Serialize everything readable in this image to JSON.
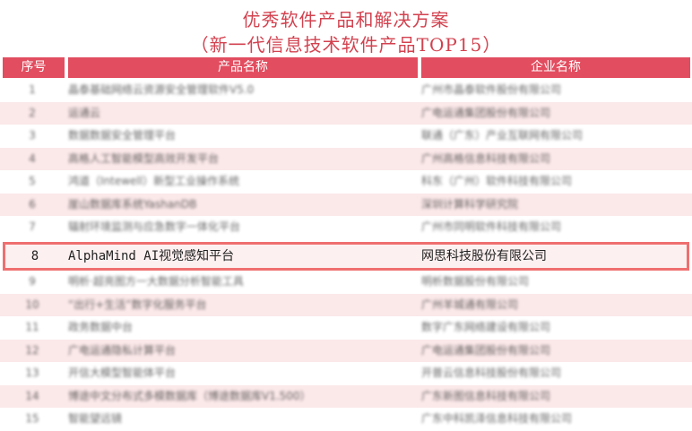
{
  "title": {
    "line1": "优秀软件产品和解决方案",
    "line2": "（新一代信息技术软件产品TOP15）"
  },
  "table": {
    "headers": [
      "序号",
      "产品名称",
      "企业名称"
    ],
    "highlight_color": "#ef6f70",
    "header_color": "#e24d5f",
    "rows": [
      {
        "no": "1",
        "product": "晶泰基础网络云资源安全管理软件V5.0",
        "company": "广州市晶泰软件股份有限公司"
      },
      {
        "no": "2",
        "product": "运通云",
        "company": "广电运通集团股份有限公司"
      },
      {
        "no": "3",
        "product": "数据数据安全管理平台",
        "company": "联通（广东）产业互联网有限公司"
      },
      {
        "no": "4",
        "product": "高格人工智能模型高效开发平台",
        "company": "广州高格信息科技有限公司"
      },
      {
        "no": "5",
        "product": "鸿道（Intewell）新型工业操作系统",
        "company": "科东（广州）软件科技有限公司"
      },
      {
        "no": "6",
        "product": "崖山数据库系统YashanDB",
        "company": "深圳计算科学研究院"
      },
      {
        "no": "7",
        "product": "辐射环境监测与应急数字一体化平台",
        "company": "广州市同明软件科技有限公司"
      },
      {
        "no": "8",
        "product": "AlphaMind AI视觉感知平台",
        "company": "网思科技股份有限公司"
      },
      {
        "no": "9",
        "product": "明析·超亮图方一大数据分析智能工具",
        "company": "明析数据股份有限公司"
      },
      {
        "no": "10",
        "product": "“出行+生活”数字化服务平台",
        "company": "广州羊城通有限公司"
      },
      {
        "no": "11",
        "product": "政务数据中台",
        "company": "数字广东网络建设有限公司"
      },
      {
        "no": "12",
        "product": "广电运通隐私计算平台",
        "company": "广电运通集团股份有限公司"
      },
      {
        "no": "13",
        "product": "开信大模型智能体平台",
        "company": "开普云信息科技股份有限公司"
      },
      {
        "no": "14",
        "product": "博途中文分布式多模数据库（博途数据库V1.500）",
        "company": "广东新图信息科技有限公司"
      },
      {
        "no": "15",
        "product": "智能望远镜",
        "company": "广东中科凯泽信息科技有限公司"
      }
    ]
  }
}
